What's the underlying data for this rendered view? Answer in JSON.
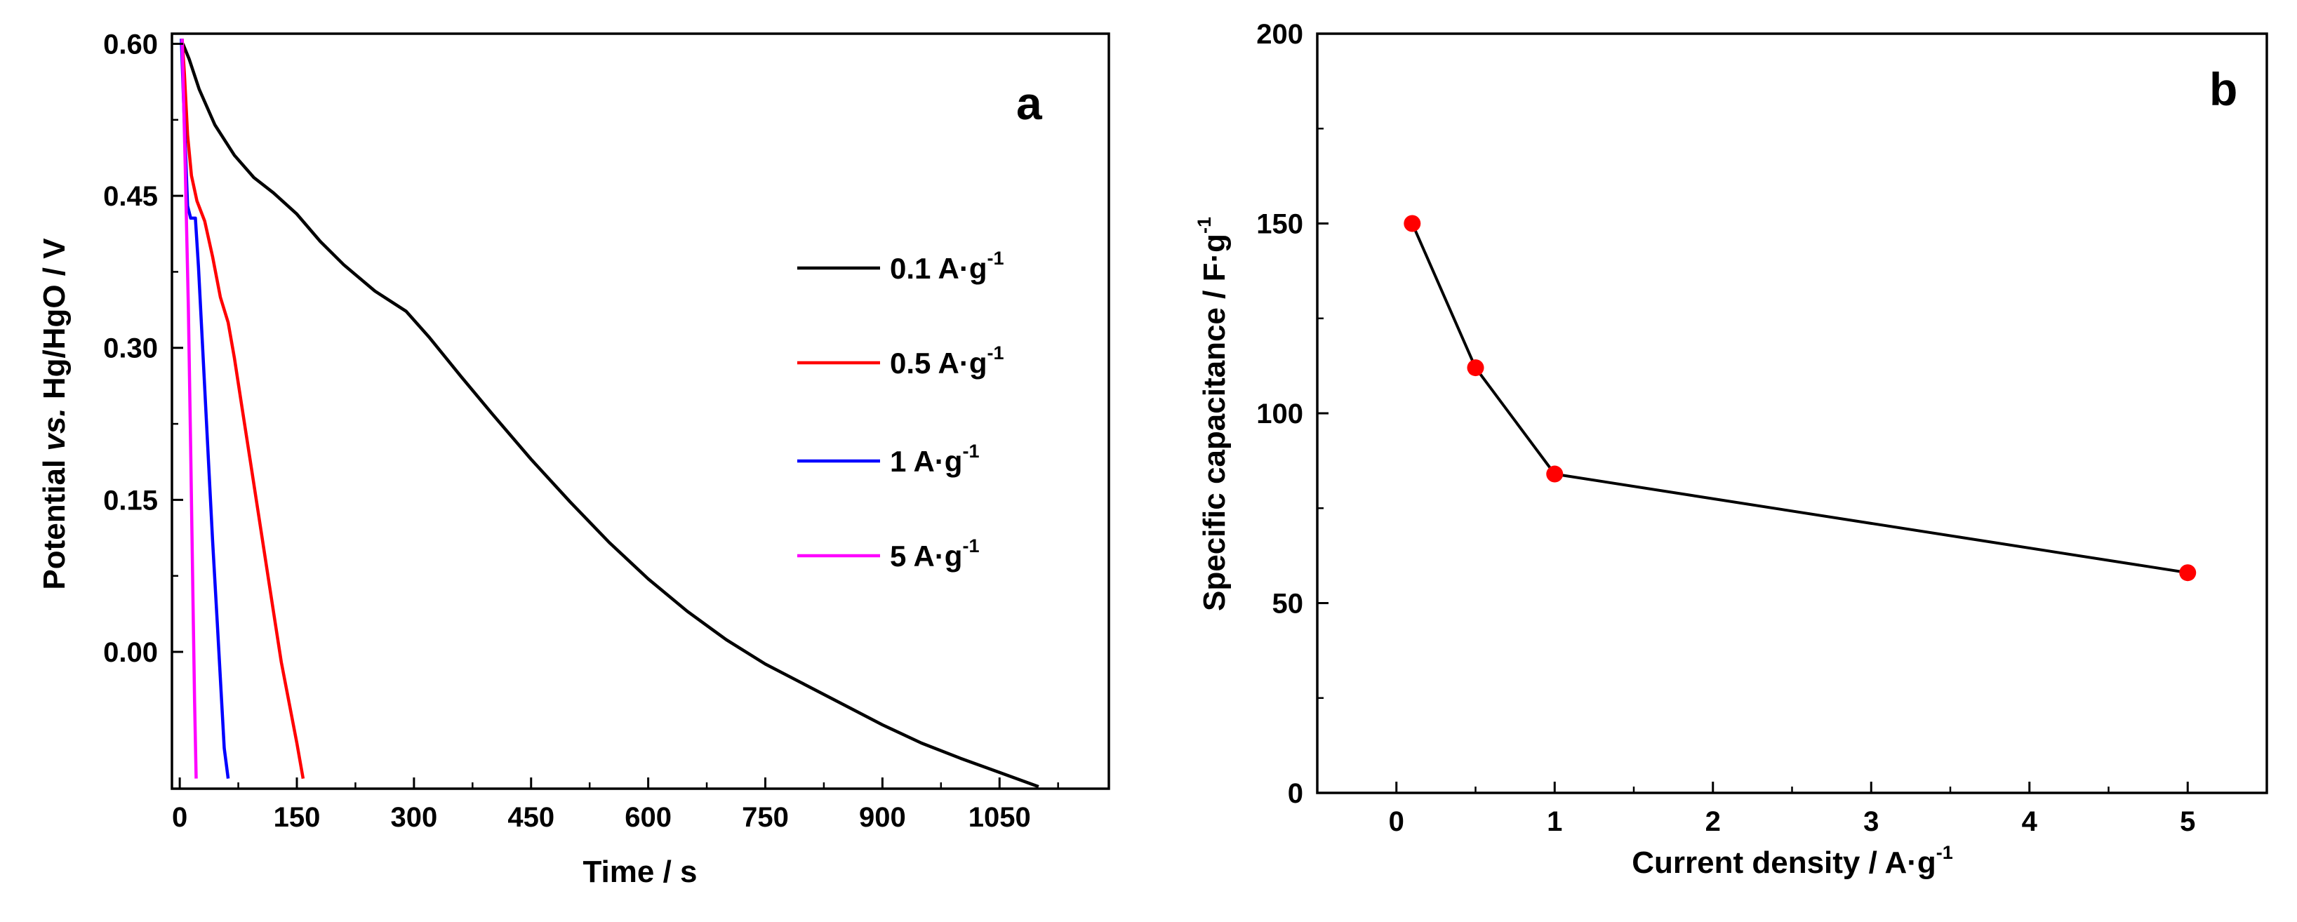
{
  "chart_data": [
    {
      "type": "line",
      "panel_label": "a",
      "xlabel": "Time / s",
      "ylabel_parts": [
        "Potential ",
        "vs.",
        " Hg/HgO / V"
      ],
      "xlim": [
        -10,
        1190
      ],
      "ylim": [
        -0.135,
        0.61
      ],
      "xticks": [
        0,
        150,
        300,
        450,
        600,
        750,
        900,
        1050
      ],
      "xtick_labels": [
        "0",
        "150",
        "300",
        "450",
        "600",
        "750",
        "900",
        "1050"
      ],
      "yticks": [
        0.0,
        0.15,
        0.3,
        0.45,
        0.6
      ],
      "ytick_labels": [
        "0.00",
        "0.15",
        "0.30",
        "0.45",
        "0.60"
      ],
      "legend_position": "right",
      "series": [
        {
          "name": "0.1 A·g-1",
          "label_main": "0.1 A·g",
          "label_sup": "-1",
          "color": "#000000",
          "points": [
            [
              4,
              0.6
            ],
            [
              12,
              0.585
            ],
            [
              25,
              0.555
            ],
            [
              45,
              0.52
            ],
            [
              70,
              0.49
            ],
            [
              95,
              0.468
            ],
            [
              120,
              0.453
            ],
            [
              150,
              0.432
            ],
            [
              180,
              0.405
            ],
            [
              210,
              0.382
            ],
            [
              250,
              0.356
            ],
            [
              290,
              0.336
            ],
            [
              320,
              0.31
            ],
            [
              360,
              0.272
            ],
            [
              400,
              0.235
            ],
            [
              450,
              0.19
            ],
            [
              500,
              0.148
            ],
            [
              550,
              0.108
            ],
            [
              600,
              0.072
            ],
            [
              650,
              0.04
            ],
            [
              700,
              0.012
            ],
            [
              750,
              -0.012
            ],
            [
              800,
              -0.032
            ],
            [
              850,
              -0.052
            ],
            [
              900,
              -0.072
            ],
            [
              950,
              -0.09
            ],
            [
              1000,
              -0.105
            ],
            [
              1050,
              -0.119
            ],
            [
              1100,
              -0.133
            ]
          ]
        },
        {
          "name": "0.5 A·g-1",
          "label_main": "0.5 A·g",
          "label_sup": "-1",
          "color": "#ff0000",
          "points": [
            [
              3,
              0.605
            ],
            [
              6,
              0.57
            ],
            [
              10,
              0.51
            ],
            [
              15,
              0.47
            ],
            [
              22,
              0.445
            ],
            [
              32,
              0.425
            ],
            [
              42,
              0.39
            ],
            [
              52,
              0.35
            ],
            [
              62,
              0.325
            ],
            [
              70,
              0.29
            ],
            [
              80,
              0.24
            ],
            [
              90,
              0.19
            ],
            [
              100,
              0.14
            ],
            [
              110,
              0.09
            ],
            [
              120,
              0.04
            ],
            [
              130,
              -0.01
            ],
            [
              140,
              -0.05
            ],
            [
              150,
              -0.09
            ],
            [
              158,
              -0.125
            ]
          ]
        },
        {
          "name": "1 A·g-1",
          "label_main": "1 A·g",
          "label_sup": "-1",
          "color": "#0000ff",
          "points": [
            [
              2,
              0.605
            ],
            [
              6,
              0.52
            ],
            [
              10,
              0.44
            ],
            [
              14,
              0.428
            ],
            [
              20,
              0.428
            ],
            [
              24,
              0.38
            ],
            [
              30,
              0.29
            ],
            [
              36,
              0.2
            ],
            [
              42,
              0.11
            ],
            [
              48,
              0.03
            ],
            [
              53,
              -0.04
            ],
            [
              57,
              -0.095
            ],
            [
              62,
              -0.125
            ]
          ]
        },
        {
          "name": "5 A·g-1",
          "label_main": "5 A·g",
          "label_sup": "-1",
          "color": "#ff00ff",
          "points": [
            [
              3,
              0.605
            ],
            [
              7,
              0.48
            ],
            [
              11,
              0.34
            ],
            [
              14,
              0.2
            ],
            [
              17,
              0.05
            ],
            [
              19,
              -0.05
            ],
            [
              21,
              -0.125
            ]
          ]
        }
      ]
    },
    {
      "type": "line",
      "panel_label": "b",
      "xlabel_main": "Current density / A·g",
      "xlabel_sup": "-1",
      "ylabel_main": "Specific capacitance / F·g",
      "ylabel_sup": "-1",
      "xlim": [
        -0.5,
        5.5
      ],
      "ylim": [
        0,
        200
      ],
      "xticks": [
        0,
        1,
        2,
        3,
        4,
        5
      ],
      "xtick_labels": [
        "0",
        "1",
        "2",
        "3",
        "4",
        "5"
      ],
      "yticks": [
        0,
        50,
        100,
        150,
        200
      ],
      "ytick_labels": [
        "0",
        "50",
        "100",
        "150",
        "200"
      ],
      "line_color": "#000000",
      "marker_color": "#ff0000",
      "x": [
        0.1,
        0.5,
        1,
        5
      ],
      "y": [
        150,
        112,
        84,
        58
      ]
    }
  ]
}
